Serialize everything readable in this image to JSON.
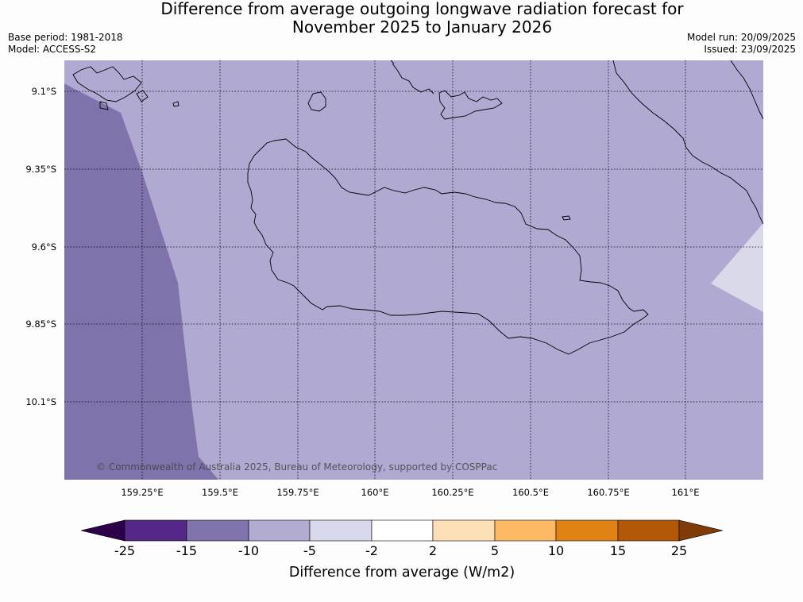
{
  "title": {
    "line1": "Difference from average outgoing longwave radiation forecast for",
    "line2": "November 2025 to January 2026"
  },
  "meta": {
    "base_period": "Base period: 1981-2018",
    "model": "Model: ACCESS-S2",
    "model_run": "Model run: 20/09/2025",
    "issued": "Issued: 23/09/2025"
  },
  "map": {
    "latitude_labels": [
      "9.1°S",
      "9.35°S",
      "9.6°S",
      "9.85°S",
      "10.1°S"
    ],
    "longitude_labels": [
      "159.25°E",
      "159.5°E",
      "159.75°E",
      "160°E",
      "160.25°E",
      "160.5°E",
      "160.75°E",
      "161°E"
    ],
    "copyright": "© Commonwealth of Australia 2025, Bureau of Meteorology, supported by COSPPac",
    "colors": {
      "background_fill": "#b0a9d1",
      "west_fill": "#8073ac",
      "east_fill": "#d9d9ea",
      "coast": "#000000",
      "grid": "#000000"
    }
  },
  "colorbar": {
    "title": "Difference from average (W/m2)",
    "tick_labels": [
      "-25",
      "-15",
      "-10",
      "-5",
      "-2",
      "2",
      "5",
      "10",
      "15",
      "25"
    ],
    "colors": [
      "#2d004b",
      "#542788",
      "#8073ac",
      "#b2abd2",
      "#d8daeb",
      "#ffffff",
      "#fee0b6",
      "#fdb863",
      "#e08214",
      "#b35806",
      "#7f3b08"
    ]
  }
}
